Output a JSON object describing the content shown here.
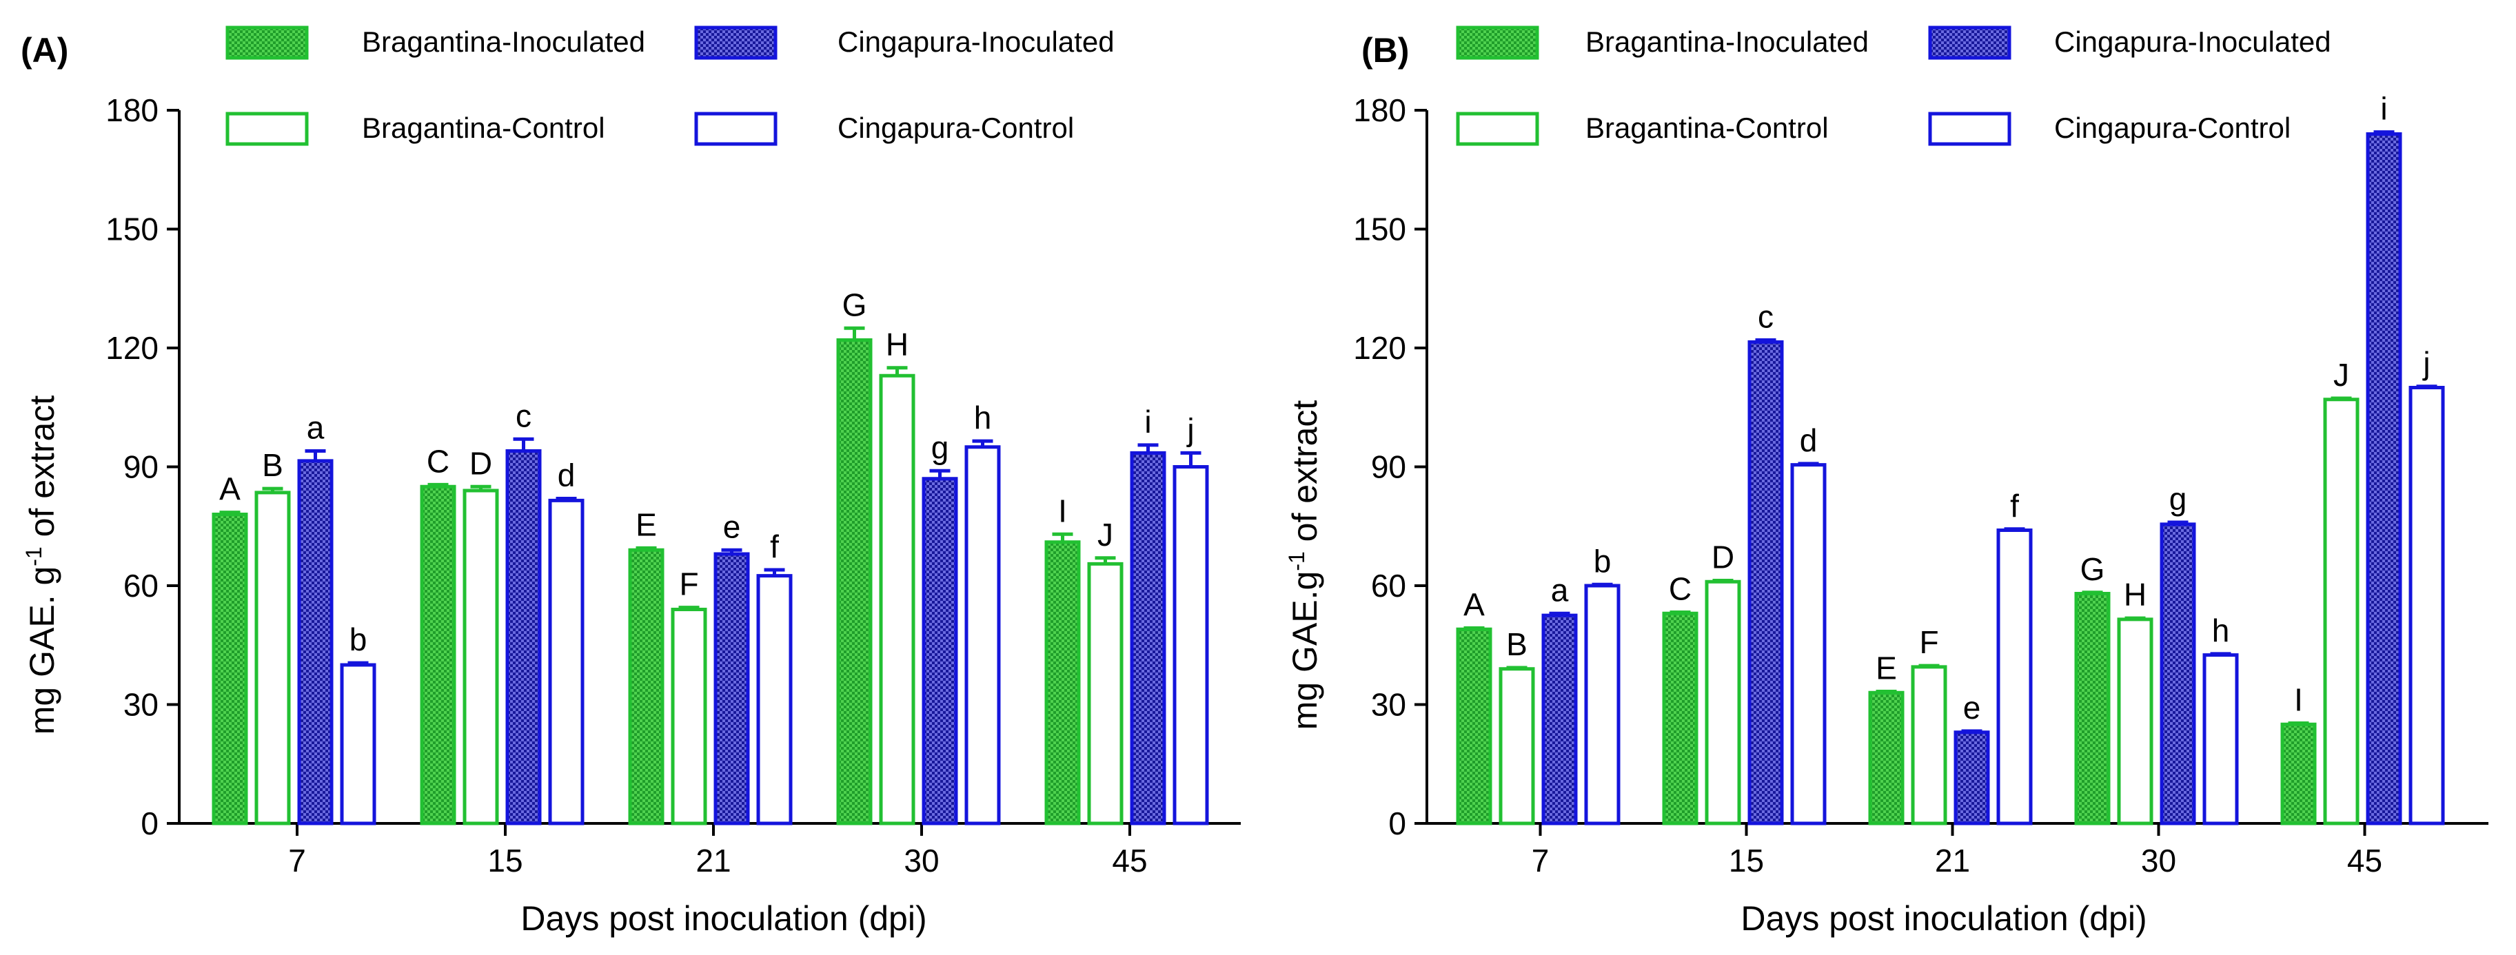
{
  "colors": {
    "bragantina": "#22c032",
    "cingapura": "#1414dc",
    "bragantina_fill": "#33cc33",
    "cingapura_fill": "#4040c8"
  },
  "chart_data": [
    {
      "type": "bar",
      "panel_label": "(A)",
      "xlabel": "Days post inoculation (dpi)",
      "ylabel_main": "mg GAE. g",
      "ylabel_sup": "-1",
      "ylabel_tail": " of extract",
      "ylim": [
        0,
        180
      ],
      "yticks": [
        0,
        30,
        60,
        90,
        120,
        150,
        180
      ],
      "categories": [
        "7",
        "15",
        "21",
        "30",
        "45"
      ],
      "legend": [
        "Bragantina-Inoculated",
        "Cingapura-Inoculated",
        "Bragantina-Control",
        "Cingapura-Control"
      ],
      "series": [
        {
          "name": "Bragantina-Inoculated",
          "values": [
            78,
            85,
            69,
            122,
            71
          ],
          "errors": [
            0.5,
            0.5,
            0.5,
            3,
            2
          ],
          "labels": [
            "A",
            "C",
            "E",
            "G",
            "I"
          ]
        },
        {
          "name": "Bragantina-Control",
          "values": [
            83.5,
            84,
            54,
            113,
            65.5
          ],
          "errors": [
            1,
            1,
            0.5,
            2,
            1.5
          ],
          "labels": [
            "B",
            "D",
            "F",
            "H",
            "J"
          ]
        },
        {
          "name": "Cingapura-Inoculated",
          "values": [
            91.5,
            94,
            68,
            87,
            93.5
          ],
          "errors": [
            2.5,
            3,
            1,
            2,
            2
          ],
          "labels": [
            "a",
            "c",
            "e",
            "g",
            "i"
          ]
        },
        {
          "name": "Cingapura-Control",
          "values": [
            40,
            81.5,
            62.5,
            95,
            90
          ],
          "errors": [
            0.5,
            0.5,
            1.5,
            1.5,
            3.5
          ],
          "labels": [
            "b",
            "d",
            "f",
            "h",
            "j"
          ]
        }
      ]
    },
    {
      "type": "bar",
      "panel_label": "(B)",
      "xlabel": "Days post inoculation (dpi)",
      "ylabel_main": "mg GAE.g",
      "ylabel_sup": "-1",
      "ylabel_tail": " of extract",
      "ylim": [
        0,
        180
      ],
      "yticks": [
        0,
        30,
        60,
        90,
        120,
        150,
        180
      ],
      "categories": [
        "7",
        "15",
        "21",
        "30",
        "45"
      ],
      "legend": [
        "Bragantina-Inoculated",
        "Cingapura-Inoculated",
        "Bragantina-Control",
        "Cingapura-Control"
      ],
      "series": [
        {
          "name": "Bragantina-Inoculated",
          "values": [
            49,
            53,
            33,
            58,
            25
          ],
          "errors": [
            0.3,
            0.3,
            0.3,
            0.3,
            0.3
          ],
          "labels": [
            "A",
            "C",
            "E",
            "G",
            "I"
          ]
        },
        {
          "name": "Bragantina-Control",
          "values": [
            39,
            61,
            39.5,
            51.5,
            107
          ],
          "errors": [
            0.3,
            0.3,
            0.3,
            0.3,
            0.3
          ],
          "labels": [
            "B",
            "D",
            "F",
            "H",
            "J"
          ]
        },
        {
          "name": "Cingapura-Inoculated",
          "values": [
            52.5,
            121.5,
            23,
            75.5,
            174
          ],
          "errors": [
            0.5,
            0.5,
            0.3,
            0.5,
            0.5
          ],
          "labels": [
            "a",
            "c",
            "e",
            "g",
            "i"
          ]
        },
        {
          "name": "Cingapura-Control",
          "values": [
            60,
            90.5,
            74,
            42.5,
            110
          ],
          "errors": [
            0.3,
            0.3,
            0.3,
            0.3,
            0.3
          ],
          "labels": [
            "b",
            "d",
            "f",
            "h",
            "j"
          ]
        }
      ]
    }
  ]
}
